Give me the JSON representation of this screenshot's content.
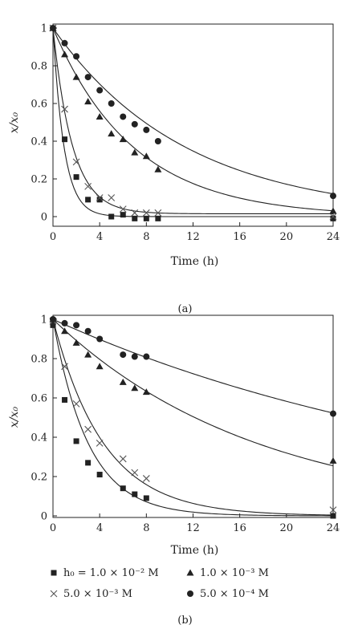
{
  "chart_data": [
    {
      "type": "scatter",
      "panel_label": "(a)",
      "xlabel": "Time (h)",
      "ylabel": "x/x₀",
      "xlim": [
        0,
        24
      ],
      "ylim": [
        -0.05,
        1.03
      ],
      "xticks": [
        "0",
        "4",
        "8",
        "12",
        "16",
        "20",
        "24"
      ],
      "xtick_values": [
        0,
        4,
        8,
        12,
        16,
        20,
        24
      ],
      "yticks": [
        "0",
        "0.2",
        "0.4",
        "0.6",
        "0.8",
        "1"
      ],
      "ytick_values": [
        0,
        0.2,
        0.4,
        0.6,
        0.8,
        1
      ],
      "grid": false,
      "series": [
        {
          "marker": "square",
          "points": [
            [
              0,
              1.0
            ],
            [
              1,
              0.41
            ],
            [
              2,
              0.21
            ],
            [
              3,
              0.09
            ],
            [
              4,
              0.09
            ],
            [
              5,
              0.0
            ],
            [
              6,
              0.01
            ],
            [
              7,
              -0.01
            ],
            [
              8,
              -0.01
            ],
            [
              9,
              -0.01
            ],
            [
              24,
              -0.01
            ]
          ],
          "fit": {
            "k": 1.05,
            "floor": 0.0
          }
        },
        {
          "marker": "cross",
          "points": [
            [
              0,
              1.0
            ],
            [
              1,
              0.57
            ],
            [
              2,
              0.29
            ],
            [
              3,
              0.16
            ],
            [
              4,
              0.1
            ],
            [
              5,
              0.1
            ],
            [
              6,
              0.04
            ],
            [
              7,
              0.02
            ],
            [
              8,
              0.02
            ],
            [
              9,
              0.02
            ],
            [
              24,
              0.0
            ]
          ],
          "fit": {
            "k": 0.6,
            "floor": 0.015
          }
        },
        {
          "marker": "triangle",
          "points": [
            [
              0,
              1.0
            ],
            [
              1,
              0.86
            ],
            [
              2,
              0.74
            ],
            [
              3,
              0.61
            ],
            [
              4,
              0.53
            ],
            [
              5,
              0.44
            ],
            [
              6,
              0.41
            ],
            [
              7,
              0.34
            ],
            [
              8,
              0.32
            ],
            [
              9,
              0.25
            ],
            [
              24,
              0.03
            ]
          ],
          "fit": {
            "k": 0.145,
            "floor": 0.0
          }
        },
        {
          "marker": "circle",
          "points": [
            [
              0,
              1.0
            ],
            [
              1,
              0.92
            ],
            [
              2,
              0.85
            ],
            [
              3,
              0.74
            ],
            [
              4,
              0.67
            ],
            [
              5,
              0.6
            ],
            [
              6,
              0.53
            ],
            [
              7,
              0.49
            ],
            [
              8,
              0.46
            ],
            [
              9,
              0.4
            ],
            [
              24,
              0.11
            ]
          ],
          "fit": {
            "k": 0.088,
            "floor": 0.0
          }
        }
      ]
    },
    {
      "type": "scatter",
      "panel_label": "(b)",
      "xlabel": "Time (h)",
      "ylabel": "x/x₀",
      "xlim": [
        0,
        24
      ],
      "ylim": [
        -0.02,
        1.03
      ],
      "xticks": [
        "0",
        "4",
        "8",
        "12",
        "16",
        "20",
        "24"
      ],
      "xtick_values": [
        0,
        4,
        8,
        12,
        16,
        20,
        24
      ],
      "yticks": [
        "0",
        "0.2",
        "0.4",
        "0.6",
        "0.8",
        "1"
      ],
      "ytick_values": [
        0,
        0.2,
        0.4,
        0.6,
        0.8,
        1
      ],
      "grid": false,
      "series": [
        {
          "name": "h₀ = 1.0 × 10⁻² M",
          "marker": "square",
          "points": [
            [
              0,
              0.97
            ],
            [
              1,
              0.59
            ],
            [
              2,
              0.38
            ],
            [
              3,
              0.27
            ],
            [
              4,
              0.21
            ],
            [
              6,
              0.14
            ],
            [
              7,
              0.11
            ],
            [
              8,
              0.09
            ],
            [
              24,
              0.0
            ]
          ],
          "fit": {
            "k": 0.33,
            "floor": 0.0
          }
        },
        {
          "name": "5.0 × 10⁻³ M",
          "marker": "cross",
          "points": [
            [
              0,
              0.99
            ],
            [
              1,
              0.76
            ],
            [
              2,
              0.57
            ],
            [
              3,
              0.44
            ],
            [
              4,
              0.37
            ],
            [
              6,
              0.29
            ],
            [
              7,
              0.22
            ],
            [
              8,
              0.19
            ],
            [
              24,
              0.03
            ]
          ],
          "fit": {
            "k": 0.23,
            "floor": 0.0
          }
        },
        {
          "name": "1.0 × 10⁻³ M",
          "marker": "triangle",
          "points": [
            [
              0,
              1.0
            ],
            [
              1,
              0.94
            ],
            [
              2,
              0.88
            ],
            [
              3,
              0.82
            ],
            [
              4,
              0.76
            ],
            [
              6,
              0.68
            ],
            [
              7,
              0.65
            ],
            [
              8,
              0.63
            ],
            [
              24,
              0.28
            ]
          ],
          "fit": {
            "k": 0.057,
            "floor": 0.0
          }
        },
        {
          "name": "5.0 × 10⁻⁴ M",
          "marker": "circle",
          "points": [
            [
              0,
              1.0
            ],
            [
              1,
              0.98
            ],
            [
              2,
              0.97
            ],
            [
              3,
              0.94
            ],
            [
              4,
              0.9
            ],
            [
              6,
              0.82
            ],
            [
              7,
              0.81
            ],
            [
              8,
              0.81
            ],
            [
              24,
              0.52
            ]
          ],
          "fit": {
            "k": 0.027,
            "floor": 0.0
          }
        }
      ],
      "legend_placement": "bottom"
    }
  ]
}
